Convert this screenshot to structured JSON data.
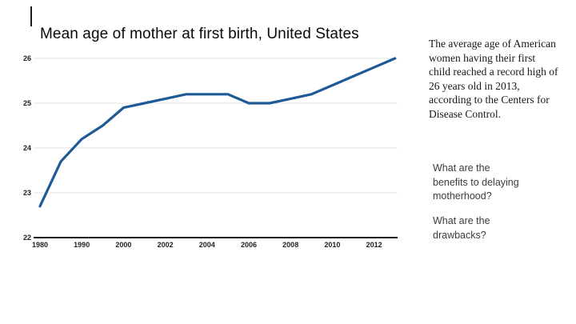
{
  "chart": {
    "title": "Mean age of mother at first birth, United States",
    "line_color": "#1e5b96",
    "grid_color": "#e6e6e6",
    "axis_color": "#1a1a1a",
    "tick_color": "#222222"
  },
  "chart_data": {
    "type": "line",
    "title": "Mean age of mother at first birth, United States",
    "series": [
      {
        "name": "Mean age of mother at first birth",
        "x": [
          1980,
          1985,
          1990,
          1995,
          2000,
          2001,
          2002,
          2003,
          2004,
          2005,
          2006,
          2007,
          2008,
          2009,
          2010,
          2011,
          2012,
          2013
        ],
        "values": [
          22.7,
          23.7,
          24.2,
          24.5,
          24.9,
          25.0,
          25.1,
          25.2,
          25.2,
          25.2,
          25.0,
          25.0,
          25.1,
          25.2,
          25.4,
          25.6,
          25.8,
          26.0
        ]
      }
    ],
    "xtick_labels": [
      "1980",
      "1990",
      "2000",
      "2002",
      "2004",
      "2006",
      "2008",
      "2010",
      "2012"
    ],
    "xtick_indices": [
      0,
      2,
      4,
      6,
      8,
      10,
      12,
      14,
      16
    ],
    "ytick_labels": [
      "22",
      "23",
      "24",
      "25",
      "26"
    ],
    "ytick_values": [
      22,
      23,
      24,
      25,
      26
    ],
    "ylim": [
      22,
      26
    ],
    "grid": true,
    "legend": false
  },
  "panel": {
    "paragraph": "The average age of American women having their first child reached a record high of 26 years old in 2013, according to the Centers for Disease Control.",
    "question1": "What are the benefits to delaying motherhood?",
    "question2": "What are the drawbacks?"
  }
}
